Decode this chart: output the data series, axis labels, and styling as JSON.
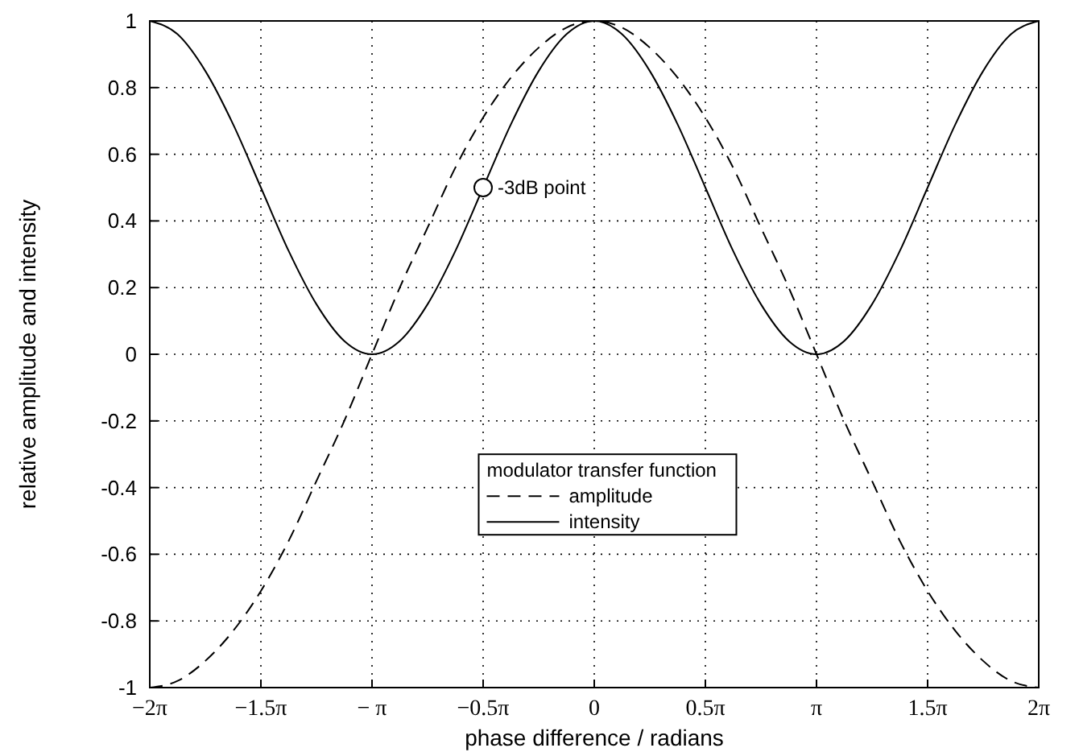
{
  "chart_data": {
    "type": "line",
    "xlabel": "phase difference / radians",
    "ylabel": "relative amplitude and intensity",
    "legend_title": "modulator transfer function",
    "legend": "bottom",
    "grid": true,
    "x": [
      -6.283,
      -5.89,
      -5.498,
      -5.105,
      -4.712,
      -4.32,
      -3.927,
      -3.534,
      -3.142,
      -2.749,
      -2.356,
      -1.963,
      -1.571,
      -1.178,
      -0.785,
      -0.393,
      0,
      0.393,
      0.785,
      1.178,
      1.571,
      1.963,
      2.356,
      2.749,
      3.142,
      3.534,
      3.927,
      4.32,
      4.712,
      5.105,
      5.498,
      5.89,
      6.283
    ],
    "xlim": [
      -6.2832,
      6.2832
    ],
    "ylim": [
      -1,
      1
    ],
    "xticks": [
      {
        "value": -6.2832,
        "label": "−2π"
      },
      {
        "value": -4.7124,
        "label": "−1.5π"
      },
      {
        "value": -3.1416,
        "label": "− π"
      },
      {
        "value": -1.5708,
        "label": "−0.5π"
      },
      0,
      {
        "value": 1.5708,
        "label": "0.5π"
      },
      {
        "value": 3.1416,
        "label": "π"
      },
      {
        "value": 4.7124,
        "label": "1.5π"
      },
      {
        "value": 6.2832,
        "label": "2π"
      }
    ],
    "yticks": [
      -1,
      -0.8,
      -0.6,
      -0.4,
      -0.2,
      0,
      0.2,
      0.4,
      0.6,
      0.8,
      1
    ],
    "annotations": [
      {
        "text": "-3dB point",
        "x": -1.571,
        "y": 0.5
      }
    ],
    "series": [
      {
        "name": "amplitude",
        "color": "#000000",
        "line_style": "dashed",
        "marker": "none",
        "values": [
          -1,
          -0.98,
          -0.92,
          -0.83,
          -0.71,
          -0.56,
          -0.38,
          -0.2,
          0,
          0.2,
          0.38,
          0.56,
          0.71,
          0.83,
          0.92,
          0.98,
          1,
          0.98,
          0.92,
          0.83,
          0.71,
          0.56,
          0.38,
          0.2,
          0,
          -0.2,
          -0.38,
          -0.56,
          -0.71,
          -0.83,
          -0.92,
          -0.98,
          -1
        ]
      },
      {
        "name": "intensity",
        "color": "#000000",
        "line_style": "solid",
        "marker": "none",
        "values": [
          1,
          0.96,
          0.85,
          0.69,
          0.5,
          0.31,
          0.15,
          0.04,
          0,
          0.04,
          0.15,
          0.31,
          0.5,
          0.69,
          0.85,
          0.96,
          1,
          0.96,
          0.85,
          0.69,
          0.5,
          0.31,
          0.15,
          0.04,
          0,
          0.04,
          0.15,
          0.31,
          0.5,
          0.69,
          0.85,
          0.96,
          1
        ]
      },
      {
        "type": "scatter",
        "color": "#000000",
        "marker": "circle",
        "x": [
          -1.571
        ],
        "values": [
          0.5
        ]
      }
    ]
  }
}
